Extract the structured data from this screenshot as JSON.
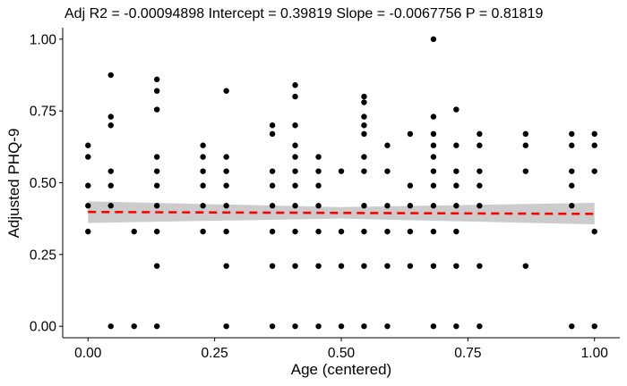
{
  "chart_data": {
    "type": "scatter",
    "title": "Adj R2 =  -0.00094898 Intercept = 0.39819  Slope = -0.0067756  P = 0.81819",
    "xlabel": "Age (centered)",
    "ylabel": "Adjusted PHQ-9",
    "xlim": [
      -0.05,
      1.05
    ],
    "ylim": [
      -0.04,
      1.04
    ],
    "x_ticks": [
      {
        "value": 0,
        "label": "0.00"
      },
      {
        "value": 0.25,
        "label": "0.25"
      },
      {
        "value": 0.5,
        "label": "0.50"
      },
      {
        "value": 0.75,
        "label": "0.75"
      },
      {
        "value": 1,
        "label": "1.00"
      }
    ],
    "y_ticks": [
      {
        "value": 0,
        "label": "0.00"
      },
      {
        "value": 0.25,
        "label": "0.25"
      },
      {
        "value": 0.5,
        "label": "0.50"
      },
      {
        "value": 0.75,
        "label": "0.75"
      },
      {
        "value": 1,
        "label": "1.00"
      }
    ],
    "grid": false,
    "legend": "none",
    "point_color": "#000000",
    "fit_line": {
      "intercept": 0.39819,
      "slope": -0.0067756,
      "color": "#ff0000",
      "style": "dashed"
    },
    "confidence_band": {
      "x": [
        0,
        0.5,
        1
      ],
      "lower": [
        0.36,
        0.375,
        0.355
      ],
      "upper": [
        0.435,
        0.415,
        0.43
      ],
      "color": "#cccccc"
    },
    "points_by_x": [
      {
        "x": 0.0,
        "y": [
          0.63,
          0.59,
          0.49,
          0.42,
          0.33
        ]
      },
      {
        "x": 0.045,
        "y": [
          0.875,
          0.73,
          0.7,
          0.54,
          0.49,
          0.42,
          0.0
        ]
      },
      {
        "x": 0.091,
        "y": [
          0.33,
          0.0
        ]
      },
      {
        "x": 0.136,
        "y": [
          0.86,
          0.82,
          0.755,
          0.59,
          0.54,
          0.49,
          0.42,
          0.33,
          0.21,
          0.0
        ]
      },
      {
        "x": 0.227,
        "y": [
          0.63,
          0.59,
          0.54,
          0.49,
          0.42,
          0.33
        ]
      },
      {
        "x": 0.273,
        "y": [
          0.82,
          0.59,
          0.54,
          0.49,
          0.42,
          0.33,
          0.21,
          0.0
        ]
      },
      {
        "x": 0.364,
        "y": [
          0.7,
          0.67,
          0.54,
          0.49,
          0.42,
          0.33,
          0.21,
          0.0
        ]
      },
      {
        "x": 0.409,
        "y": [
          0.84,
          0.8,
          0.7,
          0.63,
          0.59,
          0.54,
          0.49,
          0.42,
          0.33,
          0.21,
          0.0
        ]
      },
      {
        "x": 0.455,
        "y": [
          0.59,
          0.54,
          0.49,
          0.42,
          0.33,
          0.21,
          0.0
        ]
      },
      {
        "x": 0.5,
        "y": [
          0.54,
          0.33,
          0.21,
          0.0
        ]
      },
      {
        "x": 0.545,
        "y": [
          0.8,
          0.78,
          0.73,
          0.7,
          0.67,
          0.59,
          0.54,
          0.42,
          0.33,
          0.21,
          0.0
        ]
      },
      {
        "x": 0.591,
        "y": [
          0.63,
          0.54,
          0.42,
          0.33,
          0.21,
          0.0
        ]
      },
      {
        "x": 0.636,
        "y": [
          0.67,
          0.49,
          0.42,
          0.33,
          0.21
        ]
      },
      {
        "x": 0.682,
        "y": [
          1.0,
          0.73,
          0.67,
          0.63,
          0.59,
          0.54,
          0.49,
          0.42,
          0.33,
          0.21,
          0.0
        ]
      },
      {
        "x": 0.727,
        "y": [
          0.755,
          0.63,
          0.54,
          0.49,
          0.42,
          0.33,
          0.21,
          0.0
        ]
      },
      {
        "x": 0.773,
        "y": [
          0.67,
          0.63,
          0.54,
          0.49,
          0.42,
          0.21,
          0.0
        ]
      },
      {
        "x": 0.864,
        "y": [
          0.67,
          0.63,
          0.54,
          0.21
        ]
      },
      {
        "x": 0.955,
        "y": [
          0.67,
          0.63,
          0.54,
          0.49,
          0.42,
          0.0
        ]
      },
      {
        "x": 1.0,
        "y": [
          0.67,
          0.63,
          0.54,
          0.33,
          0.0
        ]
      }
    ]
  }
}
